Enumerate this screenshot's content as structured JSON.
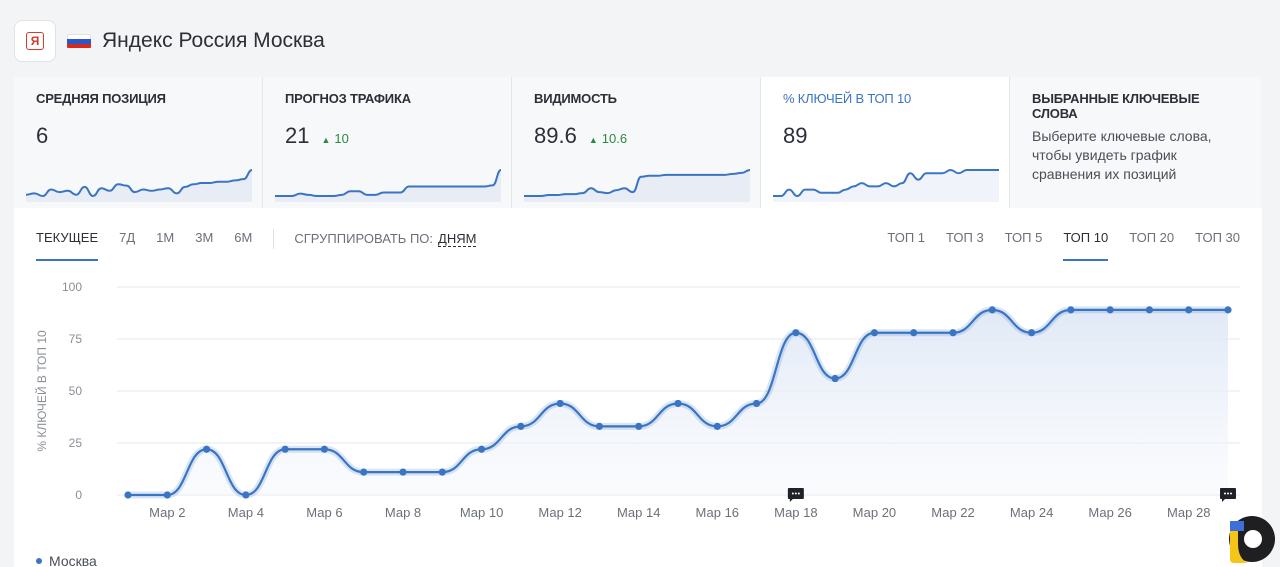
{
  "header": {
    "title": "Яндекс Россия Москва",
    "logo_letter": "Я",
    "flag_colors": [
      "#ffffff",
      "#2c57c8",
      "#d52b1e"
    ]
  },
  "cards": [
    {
      "label": "СРЕДНЯЯ ПОЗИЦИЯ",
      "value": "6",
      "delta": "",
      "spark": [
        3.6,
        3.7,
        3.5,
        4.0,
        3.8,
        3.9,
        3.6,
        4.2,
        3.5,
        4.1,
        3.9,
        4.4,
        4.3,
        3.8,
        4.0,
        3.9,
        4.0,
        4.1,
        3.7,
        4.2,
        4.4,
        4.5,
        4.5,
        4.6,
        4.6,
        4.7,
        4.8,
        5.5
      ]
    },
    {
      "label": "ПРОГНОЗ ТРАФИКА",
      "value": "21",
      "delta": "10",
      "spark": [
        0.2,
        0.2,
        0.2,
        0.4,
        0.3,
        0.2,
        0.2,
        0.2,
        0.3,
        0.6,
        0.6,
        0.3,
        0.3,
        0.5,
        0.5,
        0.5,
        1.0,
        1.0,
        1.0,
        1.0,
        1.0,
        1.0,
        1.0,
        1.0,
        1.0,
        1.0,
        1.1,
        2.4
      ]
    },
    {
      "label": "ВИДИМОСТЬ",
      "value": "89.6",
      "delta": "10.6",
      "spark": [
        0.8,
        0.8,
        0.8,
        0.9,
        0.9,
        1.0,
        1.0,
        1.1,
        1.6,
        1.2,
        1.1,
        1.4,
        1.6,
        1.2,
        2.8,
        2.9,
        2.9,
        3.0,
        3.0,
        3.0,
        3.0,
        3.0,
        3.0,
        3.0,
        3.0,
        3.1,
        3.2,
        3.5
      ]
    },
    {
      "label": "% КЛЮЧЕЙ В ТОП 10",
      "value": "89",
      "delta": "",
      "spark": [
        0,
        0,
        22,
        0,
        22,
        22,
        11,
        11,
        11,
        22,
        33,
        44,
        33,
        33,
        44,
        33,
        44,
        78,
        56,
        78,
        78,
        78,
        89,
        78,
        89,
        89,
        89,
        89,
        89
      ]
    },
    {
      "label": "ВЫБРАННЫЕ КЛЮЧЕВЫЕ СЛОВА",
      "description": "Выберите ключевые слова, чтобы увидеть график сравнения их позиций"
    }
  ],
  "period_tabs": [
    "ТЕКУЩЕЕ",
    "7Д",
    "1М",
    "3М",
    "6М"
  ],
  "group_by": {
    "label": "СГРУППИРОВАТЬ ПО:",
    "value": "ДНЯМ"
  },
  "top_tabs": [
    "ТОП 1",
    "ТОП 3",
    "ТОП 5",
    "ТОП 10",
    "ТОП 20",
    "ТОП 30"
  ],
  "selected_period": "ТЕКУЩЕЕ",
  "selected_top": "ТОП 10",
  "accent_color": "#3a75c4",
  "legend": {
    "series": "Москва"
  },
  "chart_data": {
    "type": "area",
    "ylabel": "% КЛЮЧЕЙ В ТОП 10",
    "ylim": [
      0,
      100
    ],
    "yticks": [
      0,
      25,
      50,
      75,
      100
    ],
    "x_labels": [
      "Мар 2",
      "Мар 4",
      "Мар 6",
      "Мар 8",
      "Мар 10",
      "Мар 12",
      "Мар 14",
      "Мар 16",
      "Мар 18",
      "Мар 20",
      "Мар 22",
      "Мар 24",
      "Мар 26",
      "Мар 28"
    ],
    "x": [
      "Мар 1",
      "Мар 2",
      "Мар 3",
      "Мар 4",
      "Мар 5",
      "Мар 6",
      "Мар 7",
      "Мар 8",
      "Мар 9",
      "Мар 10",
      "Мар 11",
      "Мар 12",
      "Мар 13",
      "Мар 14",
      "Мар 15",
      "Мар 16",
      "Мар 17",
      "Мар 18",
      "Мар 19",
      "Мар 20",
      "Мар 21",
      "Мар 22",
      "Мар 23",
      "Мар 24",
      "Мар 25",
      "Мар 26",
      "Мар 27",
      "Мар 28",
      "Мар 29"
    ],
    "series": [
      {
        "name": "Москва",
        "values": [
          0,
          0,
          22,
          0,
          22,
          22,
          11,
          11,
          11,
          22,
          33,
          44,
          33,
          33,
          44,
          33,
          44,
          78,
          56,
          78,
          78,
          78,
          89,
          78,
          89,
          89,
          89,
          89,
          89
        ]
      }
    ],
    "annotations": [
      {
        "x": "Мар 18",
        "icon": "comment-icon"
      },
      {
        "x": "Мар 29",
        "icon": "comment-icon"
      }
    ],
    "grid": true
  }
}
